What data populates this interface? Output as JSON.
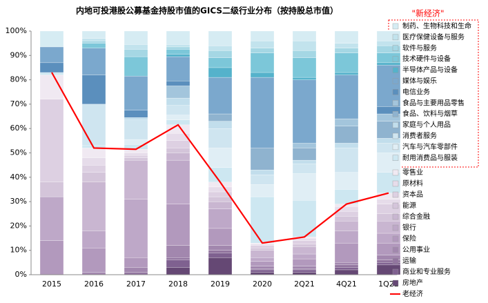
{
  "chart_data": {
    "type": "stacked_bar_line",
    "title": "内地可投港股公募基金持股市值的GICS二级行业分布（按持股总市值）",
    "annotation": "\"新经济\"",
    "categories": [
      "2015",
      "2016",
      "2017",
      "2018",
      "2019",
      "2020",
      "2Q21",
      "4Q21",
      "1Q22"
    ],
    "ylim": [
      0,
      100
    ],
    "yticks": [
      {
        "value": 0,
        "label": "0%"
      },
      {
        "value": 10,
        "label": "10%"
      },
      {
        "value": 20,
        "label": "20%"
      },
      {
        "value": 30,
        "label": "30%"
      },
      {
        "value": 40,
        "label": "40%"
      },
      {
        "value": 50,
        "label": "50%"
      },
      {
        "value": 60,
        "label": "60%"
      },
      {
        "value": 70,
        "label": "70%"
      },
      {
        "value": 80,
        "label": "80%"
      },
      {
        "value": 90,
        "label": "90%"
      },
      {
        "value": 100,
        "label": "100%"
      }
    ],
    "series": [
      {
        "name": "制药、生物科技和生命",
        "color": "#d6ecf3",
        "values": [
          6.5,
          3,
          5.5,
          5.5,
          6,
          4,
          4,
          5,
          4
        ]
      },
      {
        "name": "医疗保健设备与服务",
        "color": "#c2e3ed",
        "values": [
          0,
          1,
          2,
          1,
          2,
          3,
          4,
          2,
          2
        ]
      },
      {
        "name": "软件与服务",
        "color": "#a5d7e4",
        "values": [
          0,
          1,
          3,
          1,
          3,
          2,
          3,
          2,
          3
        ]
      },
      {
        "name": "技术硬件与设备",
        "color": "#7cc7d9",
        "values": [
          0,
          2,
          8,
          2,
          4,
          8,
          8,
          8,
          4
        ]
      },
      {
        "name": "半导体产品与设备",
        "color": "#55b2cb",
        "values": [
          0,
          0,
          0,
          1,
          4,
          2,
          1,
          1,
          1
        ]
      },
      {
        "name": "媒体与娱乐",
        "color": "#7ba8cd",
        "values": [
          6.5,
          11,
          14,
          10,
          15,
          29,
          26,
          18,
          17
        ]
      },
      {
        "name": "电信业务",
        "color": "#5b8fbd",
        "values": [
          4,
          12,
          3,
          2,
          0,
          0,
          0,
          0,
          3
        ]
      },
      {
        "name": "食品与主要用品零售",
        "color": "#a3c5dc",
        "values": [
          0,
          0,
          0,
          5,
          0,
          0,
          2,
          3,
          3
        ]
      },
      {
        "name": "食品、饮料与烟草",
        "color": "#8fb3cf",
        "values": [
          0,
          0,
          0,
          0,
          3,
          9,
          5,
          7,
          7
        ]
      },
      {
        "name": "家庭与个人用品",
        "color": "#c2deec",
        "values": [
          0,
          0,
          1,
          3,
          3,
          2,
          1.5,
          2,
          2
        ]
      },
      {
        "name": "消费者服务",
        "color": "#cfe5f0",
        "values": [
          0,
          17,
          8,
          4,
          8,
          4,
          4,
          10,
          4
        ]
      },
      {
        "name": "汽车与汽车零部件",
        "color": "#e0eef5",
        "values": [
          0,
          0,
          2,
          2,
          8,
          5,
          11,
          7,
          8
        ]
      },
      {
        "name": "耐用消费品与服装",
        "color": "#cde7f1",
        "values": [
          1,
          1,
          2,
          2,
          6,
          19,
          15,
          6,
          8.5
        ]
      },
      {
        "name": "零售业",
        "color": "#f0e9f2",
        "values": [
          10,
          4,
          1.5,
          3.5,
          2,
          0.5,
          0.5,
          1,
          2.5
        ]
      },
      {
        "name": "原材料",
        "color": "#e6dcea",
        "values": [
          0,
          3,
          1,
          3,
          2,
          0.5,
          1,
          2,
          2
        ]
      },
      {
        "name": "资本品",
        "color": "#ddd0e2",
        "values": [
          34,
          3,
          1,
          3,
          2,
          1,
          1.5,
          2,
          4
        ]
      },
      {
        "name": "能源",
        "color": "#d4c5da",
        "values": [
          6,
          4,
          1,
          2,
          2,
          1,
          1,
          2,
          3
        ]
      },
      {
        "name": "综合金融",
        "color": "#c9b6d1",
        "values": [
          0,
          20,
          16,
          3,
          3,
          3,
          3,
          4,
          5
        ]
      },
      {
        "name": "银行",
        "color": "#bea8c8",
        "values": [
          18,
          7,
          24,
          18,
          8,
          1.5,
          2,
          5,
          4
        ]
      },
      {
        "name": "保险",
        "color": "#b299bd",
        "values": [
          14,
          10,
          4,
          17,
          7,
          2,
          3,
          8,
          5
        ]
      },
      {
        "name": "公用事业",
        "color": "#a287ae",
        "values": [
          0,
          1,
          2,
          5,
          2,
          1,
          1,
          1,
          2
        ]
      },
      {
        "name": "运输",
        "color": "#92759f",
        "values": [
          0,
          0,
          1,
          1,
          1,
          0.5,
          0.5,
          1,
          1
        ]
      },
      {
        "name": "商业和专业服务",
        "color": "#7f6190",
        "values": [
          0,
          0,
          0,
          3,
          2,
          1,
          1,
          1,
          1
        ]
      },
      {
        "name": "房地产",
        "color": "#654874",
        "values": [
          0,
          0,
          0,
          3,
          7,
          1,
          1,
          2,
          4
        ]
      }
    ],
    "line": {
      "name": "老经济",
      "color": "#ff0000",
      "values": [
        83,
        52,
        51.5,
        61.5,
        38,
        13,
        15.5,
        29,
        33.5
      ]
    }
  }
}
